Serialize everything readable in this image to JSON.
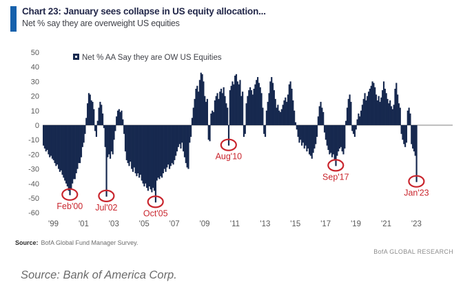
{
  "header": {
    "title": "Chart 23: January sees collapse in US equity allocation...",
    "subtitle": "Net % say they are overweight US equities"
  },
  "chart_data": {
    "type": "bar",
    "title": "Net % AA Say they are OW US Equities",
    "legend": "Net % AA Say they are OW US Equities",
    "xlabel": "",
    "ylabel": "Net %",
    "ylim": [
      -60,
      50
    ],
    "y_ticks": [
      50,
      40,
      30,
      20,
      10,
      0,
      -10,
      -20,
      -30,
      -40,
      -50,
      -60
    ],
    "x_tick_labels": [
      "'99",
      "'01",
      "'03",
      "'05",
      "'07",
      "'09",
      "'11",
      "'13",
      "'15",
      "'17",
      "'19",
      "'21",
      "'23"
    ],
    "x_tick_years": [
      1999,
      2001,
      2003,
      2005,
      2007,
      2009,
      2011,
      2013,
      2015,
      2017,
      2019,
      2021,
      2023
    ],
    "frequency": "monthly",
    "start": "1998-05",
    "values": [
      -14,
      -16,
      -18,
      -17,
      -20,
      -22,
      -21,
      -23,
      -24,
      -26,
      -28,
      -27,
      -30,
      -32,
      -31,
      -34,
      -36,
      -38,
      -40,
      -42,
      -45,
      -48,
      -44,
      -40,
      -37,
      -37,
      -33,
      -30,
      -26,
      -26,
      -22,
      -15,
      -12,
      -6,
      5,
      15,
      22,
      21,
      17,
      16,
      11,
      -4,
      -8,
      3,
      12,
      16,
      14,
      8,
      -2,
      -15,
      -49,
      -22,
      -20,
      -23,
      -18,
      -20,
      -10,
      -4,
      6,
      10,
      11,
      9,
      10,
      4,
      -6,
      -18,
      -24,
      -26,
      -28,
      -25,
      -30,
      -32,
      -29,
      -33,
      -35,
      -33,
      -36,
      -34,
      -38,
      -40,
      -42,
      -40,
      -43,
      -45,
      -42,
      -44,
      -46,
      -43,
      -45,
      -53,
      -38,
      -36,
      -37,
      -35,
      -36,
      -33,
      -30,
      -32,
      -29,
      -27,
      -30,
      -28,
      -26,
      -27,
      -24,
      -21,
      -18,
      -15,
      -13,
      -16,
      -12,
      -18,
      -22,
      -26,
      -29,
      -30,
      -12,
      -8,
      5,
      12,
      18,
      25,
      27,
      23,
      31,
      36,
      35,
      30,
      20,
      16,
      18,
      -10,
      -11,
      8,
      10,
      9,
      17,
      20,
      22,
      18,
      23,
      25,
      22,
      26,
      20,
      15,
      12,
      -14,
      24,
      27,
      30,
      28,
      34,
      35,
      30,
      28,
      31,
      20,
      23,
      -8,
      -6,
      15,
      20,
      24,
      26,
      24,
      21,
      25,
      28,
      31,
      33,
      29,
      26,
      22,
      12,
      -6,
      -8,
      10,
      16,
      22,
      30,
      33,
      29,
      24,
      18,
      12,
      14,
      10,
      9,
      11,
      14,
      17,
      19,
      16,
      21,
      28,
      30,
      25,
      17,
      10,
      2,
      -3,
      -8,
      -12,
      -10,
      -14,
      -12,
      -16,
      -14,
      -18,
      -16,
      -20,
      -21,
      -23,
      -19,
      -16,
      -13,
      -8,
      6,
      13,
      16,
      12,
      9,
      -5,
      -10,
      -14,
      -17,
      -20,
      -19,
      -22,
      -20,
      -24,
      -28,
      -21,
      -18,
      -16,
      -15,
      -18,
      -20,
      -16,
      3,
      12,
      18,
      21,
      16,
      -4,
      -6,
      -8,
      -3,
      4,
      8,
      6,
      10,
      14,
      18,
      22,
      17,
      20,
      23,
      25,
      27,
      30,
      29,
      26,
      21,
      17,
      20,
      16,
      19,
      24,
      30,
      25,
      22,
      18,
      15,
      17,
      13,
      11,
      14,
      25,
      29,
      21,
      15,
      12,
      -6,
      -10,
      -13,
      -15,
      -12,
      10,
      12,
      8,
      -13,
      -16,
      -18,
      -21,
      -39
    ],
    "annotations": [
      {
        "label": "Feb'00",
        "month": "2000-02",
        "value": -48
      },
      {
        "label": "Jul'02",
        "month": "2002-07",
        "value": -49
      },
      {
        "label": "Oct'05",
        "month": "2005-10",
        "value": -53
      },
      {
        "label": "Aug'10",
        "month": "2010-08",
        "value": -14
      },
      {
        "label": "Sep'17",
        "month": "2017-09",
        "value": -28
      },
      {
        "label": "Jan'23",
        "month": "2023-01",
        "value": -39
      }
    ],
    "grid": false,
    "legend_position": "top-left-inside",
    "bar_color": "#17294f",
    "annotation_color": "#c9252d",
    "axis_text_color": "#595959",
    "zero_line_color": "#7f7f7f"
  },
  "footer": {
    "source_label": "Source:",
    "source_text": "BofA Global Fund Manager Survey.",
    "brand": "BofA GLOBAL RESEARCH"
  },
  "caption": {
    "text": "Source: Bank of America Corp."
  }
}
